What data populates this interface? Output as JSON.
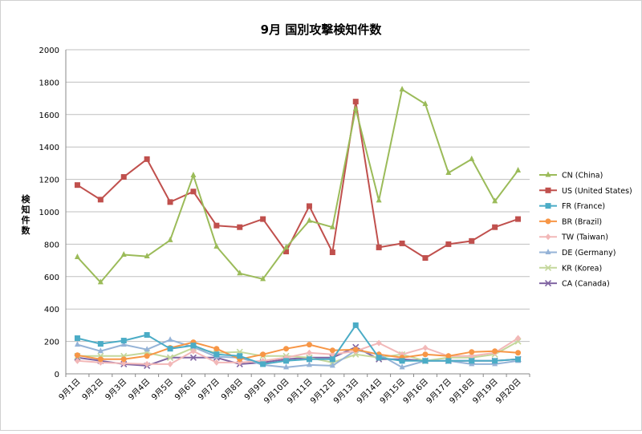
{
  "chart_data": {
    "type": "line",
    "title": "9月 国別攻撃検知件数",
    "ylabel": "検知件数",
    "xlabel": "",
    "ylim": [
      0,
      2000
    ],
    "yticks": [
      0,
      200,
      400,
      600,
      800,
      1000,
      1200,
      1400,
      1600,
      1800,
      2000
    ],
    "grid": true,
    "legend_position": "right",
    "categories": [
      "9月1日",
      "9月2日",
      "9月3日",
      "9月4日",
      "9月5日",
      "9月6日",
      "9月7日",
      "9月8日",
      "9月9日",
      "9月10日",
      "9月11日",
      "9月12日",
      "9月13日",
      "9月14日",
      "9月15日",
      "9月16日",
      "9月17日",
      "9月18日",
      "9月19日",
      "9月20日"
    ],
    "series": [
      {
        "name": "CN (China)",
        "color": "#9bbb59",
        "marker": "triangle",
        "values": [
          720,
          565,
          735,
          725,
          825,
          1225,
          785,
          620,
          585,
          780,
          945,
          905,
          1635,
          1070,
          1755,
          1665,
          1240,
          1325,
          1065,
          1255
        ]
      },
      {
        "name": "US (United States)",
        "color": "#c0504d",
        "marker": "square",
        "values": [
          1165,
          1075,
          1215,
          1325,
          1060,
          1125,
          915,
          905,
          955,
          755,
          1035,
          750,
          1680,
          780,
          805,
          715,
          800,
          820,
          905,
          955
        ]
      },
      {
        "name": "FR (France)",
        "color": "#4bacc6",
        "marker": "square",
        "values": [
          220,
          185,
          205,
          240,
          155,
          175,
          120,
          110,
          60,
          80,
          90,
          90,
          300,
          100,
          80,
          80,
          80,
          80,
          80,
          90
        ]
      },
      {
        "name": "BR (Brazil)",
        "color": "#f79646",
        "marker": "circle",
        "values": [
          115,
          90,
          90,
          110,
          160,
          195,
          155,
          90,
          120,
          155,
          180,
          145,
          150,
          120,
          100,
          120,
          110,
          135,
          140,
          130
        ]
      },
      {
        "name": "TW (Taiwan)",
        "color": "#f2b8b8",
        "marker": "diamond",
        "values": [
          80,
          70,
          65,
          60,
          60,
          140,
          70,
          70,
          80,
          100,
          130,
          120,
          140,
          190,
          120,
          160,
          110,
          110,
          130,
          220
        ]
      },
      {
        "name": "DE (Germany)",
        "color": "#95b3d7",
        "marker": "triangle",
        "values": [
          180,
          140,
          180,
          150,
          210,
          165,
          105,
          100,
          55,
          40,
          55,
          50,
          145,
          120,
          40,
          80,
          80,
          60,
          60,
          80
        ]
      },
      {
        "name": "KR (Korea)",
        "color": "#c4d79b",
        "marker": "x",
        "values": [
          110,
          110,
          110,
          130,
          100,
          160,
          130,
          135,
          110,
          110,
          100,
          70,
          120,
          100,
          120,
          80,
          100,
          100,
          120,
          200
        ]
      },
      {
        "name": "CA (Canada)",
        "color": "#8064a2",
        "marker": "x",
        "values": [
          100,
          80,
          60,
          50,
          100,
          100,
          100,
          60,
          70,
          90,
          100,
          100,
          165,
          90,
          90,
          80,
          80,
          80,
          80,
          90
        ]
      }
    ]
  }
}
